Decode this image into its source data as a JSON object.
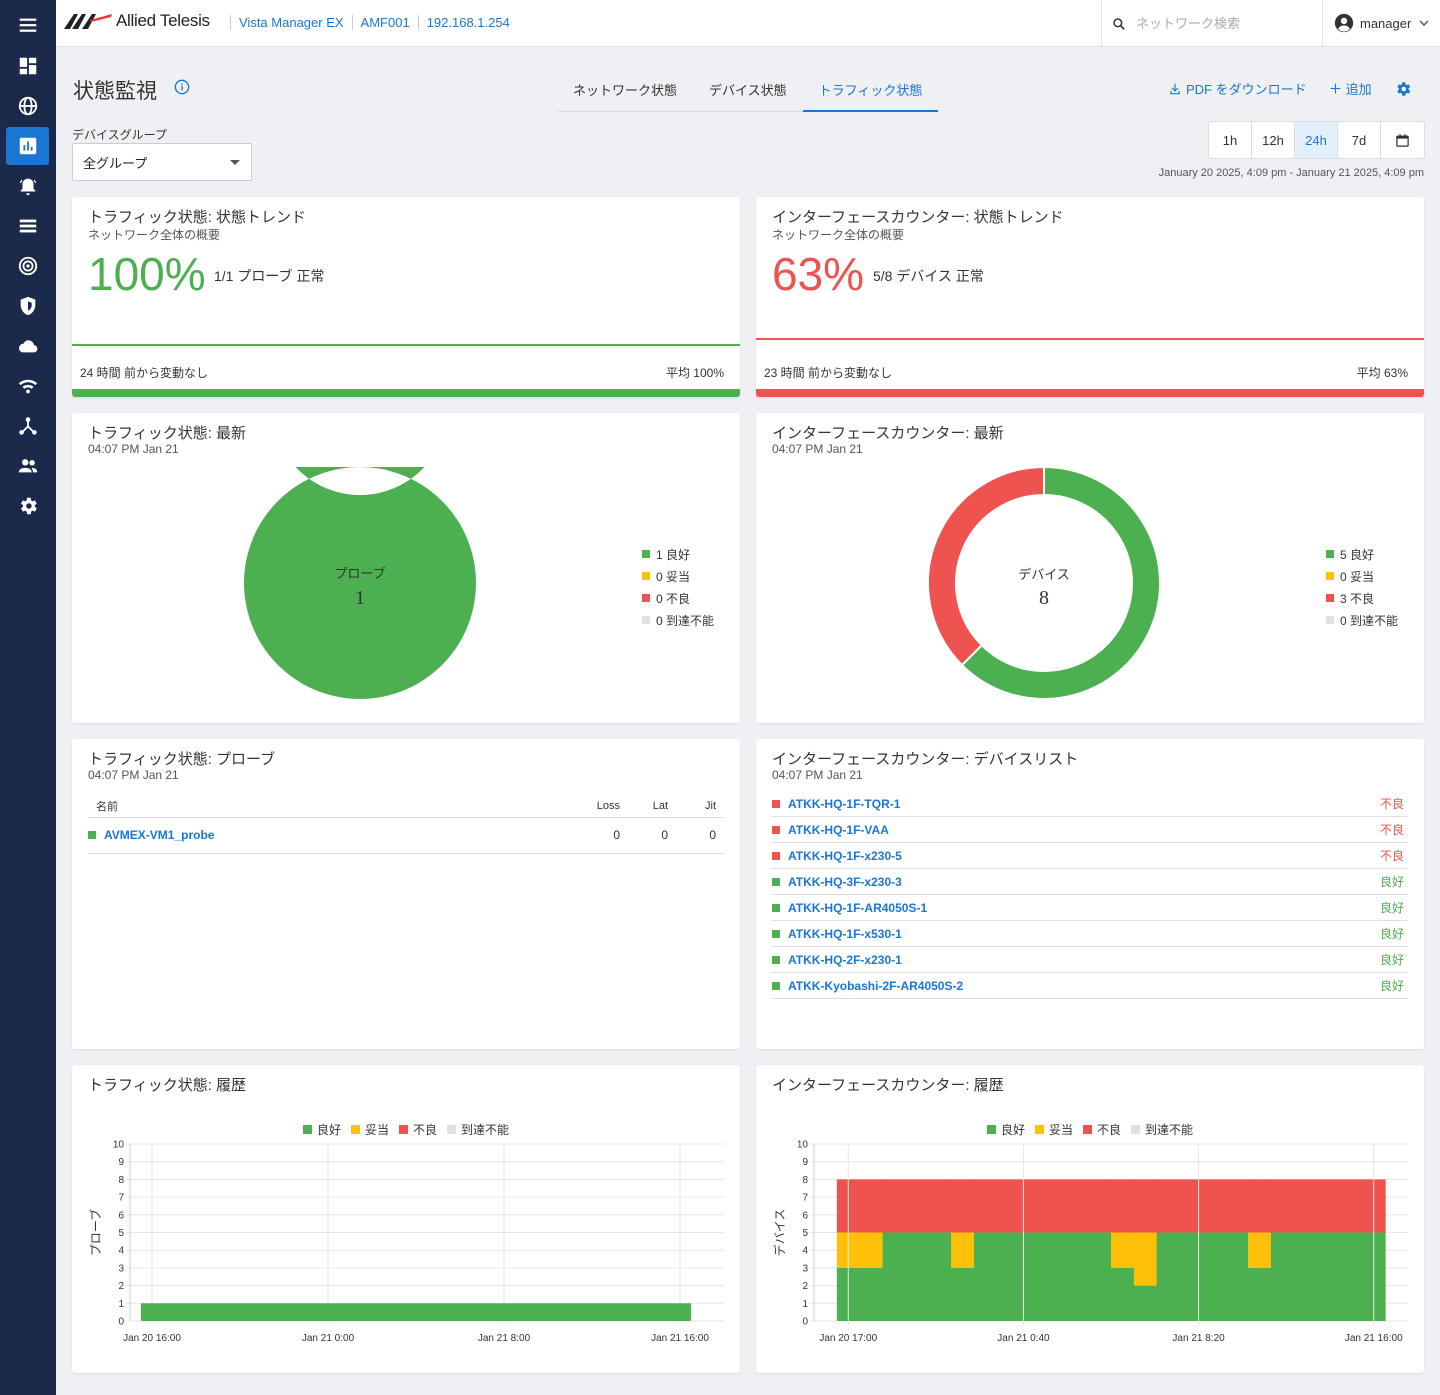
{
  "colors": {
    "good": "#4caf50",
    "fair": "#ffc107",
    "bad": "#ef5350",
    "unreachable": "#e0e0e0",
    "accent": "#1976d2",
    "sidebar": "#1b2a4a"
  },
  "sidebar": {
    "items": [
      {
        "icon": "menu-icon"
      },
      {
        "icon": "dashboard-icon"
      },
      {
        "icon": "globe-icon"
      },
      {
        "icon": "chart-icon"
      },
      {
        "icon": "alarm-icon"
      },
      {
        "icon": "list-icon"
      },
      {
        "icon": "radar-icon"
      },
      {
        "icon": "shield-icon"
      },
      {
        "icon": "cloud-icon"
      },
      {
        "icon": "wifi-icon"
      },
      {
        "icon": "topology-icon"
      },
      {
        "icon": "users-icon"
      },
      {
        "icon": "settings-icon"
      }
    ]
  },
  "topbar": {
    "brand": "Allied Telesis",
    "breadcrumbs": [
      "Vista Manager EX",
      "AMF001",
      "192.168.1.254"
    ],
    "search_placeholder": "ネットワーク検索",
    "user": "manager"
  },
  "header": {
    "title": "状態監視",
    "tabs": [
      "ネットワーク状態",
      "デバイス状態",
      "トラフィック状態"
    ],
    "active_tab": 2,
    "download_pdf": "PDF をダウンロード",
    "add": "追加"
  },
  "filters": {
    "device_group_label": "デバイスグループ",
    "device_group_value": "全グループ",
    "ranges": [
      "1h",
      "12h",
      "24h",
      "7d"
    ],
    "active_range": "24h",
    "range_text": "January 20 2025, 4:09 pm - January 21 2025, 4:09 pm"
  },
  "traffic_trend": {
    "title": "トラフィック状態: 状態トレンド",
    "subtitle": "ネットワーク全体の概要",
    "percent": "100%",
    "note": "1/1 プローブ 正常",
    "footer_left": "24 時間 前から変動なし",
    "footer_right": "平均 100%"
  },
  "iface_trend": {
    "title": "インターフェースカウンター: 状態トレンド",
    "subtitle": "ネットワーク全体の概要",
    "percent": "63%",
    "note": "5/8 デバイス 正常",
    "footer_left": "23 時間 前から変動なし",
    "footer_right": "平均 63%"
  },
  "traffic_latest": {
    "title": "トラフィック状態: 最新",
    "time": "04:07 PM Jan 21",
    "center_label": "プローブ",
    "center_value": "1",
    "legend": [
      "1 良好",
      "0 妥当",
      "0 不良",
      "0 到達不能"
    ],
    "counts": {
      "good": 1,
      "fair": 0,
      "bad": 0,
      "unreachable": 0
    }
  },
  "iface_latest": {
    "title": "インターフェースカウンター: 最新",
    "time": "04:07 PM Jan 21",
    "center_label": "デバイス",
    "center_value": "8",
    "legend": [
      "5 良好",
      "0 妥当",
      "3 不良",
      "0 到達不能"
    ],
    "counts": {
      "good": 5,
      "fair": 0,
      "bad": 3,
      "unreachable": 0
    }
  },
  "probes": {
    "title": "トラフィック状態: プローブ",
    "time": "04:07 PM Jan 21",
    "columns": [
      "名前",
      "Loss",
      "Lat",
      "Jit"
    ],
    "rows": [
      {
        "name": "AVMEX-VM1_probe",
        "loss": "0",
        "lat": "0",
        "jit": "0",
        "status": "good"
      }
    ]
  },
  "devices": {
    "title": "インターフェースカウンター: デバイスリスト",
    "time": "04:07 PM Jan 21",
    "rows": [
      {
        "name": "ATKK-HQ-1F-TQR-1",
        "status": "不良",
        "level": "bad"
      },
      {
        "name": "ATKK-HQ-1F-VAA",
        "status": "不良",
        "level": "bad"
      },
      {
        "name": "ATKK-HQ-1F-x230-5",
        "status": "不良",
        "level": "bad"
      },
      {
        "name": "ATKK-HQ-3F-x230-3",
        "status": "良好",
        "level": "good"
      },
      {
        "name": "ATKK-HQ-1F-AR4050S-1",
        "status": "良好",
        "level": "good"
      },
      {
        "name": "ATKK-HQ-1F-x530-1",
        "status": "良好",
        "level": "good"
      },
      {
        "name": "ATKK-HQ-2F-x230-1",
        "status": "良好",
        "level": "good"
      },
      {
        "name": "ATKK-Kyobashi-2F-AR4050S-2",
        "status": "良好",
        "level": "good"
      }
    ]
  },
  "legend_labels": [
    "良好",
    "妥当",
    "不良",
    "到達不能"
  ],
  "traffic_history_title": "トラフィック状態: 履歴",
  "iface_history_title": "インターフェースカウンター: 履歴",
  "chart_data": [
    {
      "type": "area",
      "ylabel": "プローブ",
      "ylim": [
        0,
        10
      ],
      "yticks": [
        0,
        1,
        2,
        3,
        4,
        5,
        6,
        7,
        8,
        9,
        10
      ],
      "xticks": [
        "Jan 20 16:00",
        "Jan 21 0:00",
        "Jan 21 8:00",
        "Jan 21 16:00"
      ],
      "x_range_hours": [
        -1,
        26
      ],
      "series": [
        {
          "name": "良好",
          "segments": [
            {
              "from": -0.5,
              "to": 24.5,
              "value": 1
            }
          ]
        },
        {
          "name": "妥当",
          "segments": []
        },
        {
          "name": "不良",
          "segments": []
        },
        {
          "name": "到達不能",
          "segments": []
        }
      ]
    },
    {
      "type": "area",
      "ylabel": "デバイス",
      "ylim": [
        0,
        10
      ],
      "yticks": [
        0,
        1,
        2,
        3,
        4,
        5,
        6,
        7,
        8,
        9,
        10
      ],
      "xticks": [
        "Jan 20 17:00",
        "Jan 21 0:40",
        "Jan 21 8:20",
        "Jan 21 16:00"
      ],
      "x_range_hours": [
        -1.5,
        24.5
      ],
      "stack": [
        {
          "from": -0.5,
          "to": 1.5,
          "good": 3,
          "fair": 2,
          "bad": 3
        },
        {
          "from": 1.5,
          "to": 4.5,
          "good": 5,
          "fair": 0,
          "bad": 3
        },
        {
          "from": 4.5,
          "to": 5.5,
          "good": 3,
          "fair": 2,
          "bad": 3
        },
        {
          "from": 5.5,
          "to": 11.5,
          "good": 5,
          "fair": 0,
          "bad": 3
        },
        {
          "from": 11.5,
          "to": 12.5,
          "good": 3,
          "fair": 2,
          "bad": 3
        },
        {
          "from": 12.5,
          "to": 13.5,
          "good": 2,
          "fair": 3,
          "bad": 3
        },
        {
          "from": 13.5,
          "to": 17.5,
          "good": 5,
          "fair": 0,
          "bad": 3
        },
        {
          "from": 17.5,
          "to": 18.5,
          "good": 3,
          "fair": 2,
          "bad": 3
        },
        {
          "from": 18.5,
          "to": 23.5,
          "good": 5,
          "fair": 0,
          "bad": 3
        }
      ]
    }
  ]
}
